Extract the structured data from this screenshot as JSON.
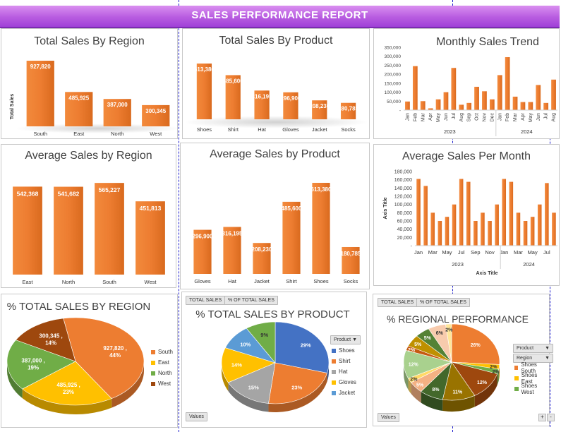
{
  "banner": {
    "title": "SALES PERFORMANCE REPORT"
  },
  "colors": {
    "orange": "#ed7d31",
    "blue": "#4472c4",
    "gray": "#a5a5a5",
    "gold": "#ffc000",
    "lightblue": "#5b9bd5",
    "green": "#70ad47",
    "brown": "#9e480e",
    "banner": "#b85ce0"
  },
  "chart_data": [
    {
      "id": "sales-by-region",
      "type": "bar",
      "title": "Total Sales By Region",
      "ylabel": "Total Sales",
      "xlabel": "",
      "categories": [
        "South",
        "East",
        "North",
        "West"
      ],
      "values": [
        927820,
        485925,
        387000,
        300345
      ],
      "data_labels": [
        "927,820",
        "485,925",
        "387,000",
        "300,345"
      ]
    },
    {
      "id": "sales-by-product",
      "type": "bar",
      "title": "Total Sales By Product",
      "xlabel": "",
      "ylabel": "",
      "categories": [
        "Shoes",
        "Shirt",
        "Hat",
        "Gloves",
        "Jacket",
        "Socks"
      ],
      "values": [
        613380,
        485600,
        316195,
        296900,
        208230,
        180785
      ],
      "data_labels": [
        "613,380",
        "485,600",
        "316,195",
        "296,900",
        "208,230",
        "180,785"
      ]
    },
    {
      "id": "monthly-trend",
      "type": "bar",
      "title": "Monthly Sales Trend",
      "xlabel": "",
      "ylabel": "",
      "categories": [
        "Jan",
        "Feb",
        "Mar",
        "Apr",
        "May",
        "Jun",
        "Jul",
        "Aug",
        "Sep",
        "Oct",
        "Nov",
        "Dec",
        "Jan",
        "Feb",
        "Mar",
        "Apr",
        "May",
        "Jun",
        "Jul",
        "Aug"
      ],
      "year_groups": [
        "2023",
        "2024"
      ],
      "values": [
        48000,
        245000,
        50000,
        10000,
        60000,
        100000,
        235000,
        30000,
        40000,
        130000,
        105000,
        60000,
        195000,
        295000,
        75000,
        45000,
        45000,
        140000,
        40000,
        170000
      ],
      "ylim": [
        0,
        350000
      ],
      "yticks": [
        "-",
        "50,000",
        "100,000",
        "150,000",
        "200,000",
        "250,000",
        "300,000",
        "350,000"
      ]
    },
    {
      "id": "avg-by-region",
      "type": "bar",
      "title": "Average Sales by Region",
      "xlabel": "",
      "ylabel": "",
      "categories": [
        "East",
        "North",
        "South",
        "West"
      ],
      "values": [
        542368,
        541682,
        565227,
        451813
      ],
      "data_labels": [
        "542,368",
        "541,682",
        "565,227",
        "451,813"
      ]
    },
    {
      "id": "avg-by-product",
      "type": "bar",
      "title": "Average Sales by Product",
      "xlabel": "",
      "ylabel": "",
      "categories": [
        "Gloves",
        "Hat",
        "Jacket",
        "Shirt",
        "Shoes",
        "Socks"
      ],
      "values": [
        296900,
        316195,
        208230,
        485600,
        613380,
        180785
      ],
      "data_labels": [
        "296,900",
        "316,195",
        "208,230",
        "485,600",
        "613,380",
        "180,785"
      ]
    },
    {
      "id": "avg-per-month",
      "type": "bar",
      "title": "Average Sales Per Month",
      "xlabel": "Axis Title",
      "ylabel": "Axis Title",
      "categories": [
        "Jan",
        "",
        "Mar",
        "",
        "May",
        "",
        "Jul",
        "",
        "Sep",
        "",
        "Nov",
        "",
        "Jan",
        "",
        "Mar",
        "",
        "May",
        "",
        "Jul",
        ""
      ],
      "year_groups": [
        "2023",
        "2024"
      ],
      "values": [
        162000,
        145000,
        80000,
        60000,
        70000,
        100000,
        162000,
        155000,
        60000,
        80000,
        60000,
        100000,
        162000,
        155000,
        80000,
        60000,
        70000,
        100000,
        152000,
        80000
      ],
      "ylim": [
        0,
        180000
      ],
      "yticks": [
        "-",
        "20,000",
        "40,000",
        "60,000",
        "80,000",
        "100,000",
        "120,000",
        "140,000",
        "160,000",
        "180,000"
      ]
    },
    {
      "id": "pct-by-region",
      "type": "pie",
      "title": "% TOTAL SALES BY REGION",
      "slices": [
        {
          "name": "South",
          "value": 44,
          "label": "927,820 , 44%",
          "color": "#ed7d31"
        },
        {
          "name": "East",
          "value": 23,
          "label": "485,925 , 23%",
          "color": "#ffc000"
        },
        {
          "name": "North",
          "value": 19,
          "label": "387,000 , 19%",
          "color": "#70ad47"
        },
        {
          "name": "West",
          "value": 14,
          "label": "300,345 , 14%",
          "color": "#9e480e"
        }
      ],
      "legend_position": "right"
    },
    {
      "id": "pct-by-product",
      "type": "pie",
      "title": "% TOTAL SALES BY PRODUCT",
      "slices": [
        {
          "name": "Shoes",
          "value": 29,
          "label": "29%",
          "color": "#4472c4"
        },
        {
          "name": "Shirt",
          "value": 23,
          "label": "23%",
          "color": "#ed7d31"
        },
        {
          "name": "Hat",
          "value": 15,
          "label": "15%",
          "color": "#a5a5a5"
        },
        {
          "name": "Gloves",
          "value": 14,
          "label": "14%",
          "color": "#ffc000"
        },
        {
          "name": "Jacket",
          "value": 10,
          "label": "10%",
          "color": "#5b9bd5"
        },
        {
          "name": "Socks",
          "value": 9,
          "label": "9%",
          "color": "#70ad47"
        }
      ],
      "legend_position": "right"
    },
    {
      "id": "regional-performance",
      "type": "pie",
      "title": "% REGIONAL PERFORMANCE",
      "slices": [
        {
          "name": "Shoes South",
          "value": 26,
          "label": "26%",
          "color": "#ed7d31"
        },
        {
          "name": "",
          "value": 2,
          "label": "2%",
          "color": "#ffc000"
        },
        {
          "name": "",
          "value": 2,
          "label": "2%",
          "color": "#70ad47"
        },
        {
          "name": "",
          "value": 12,
          "label": "12%",
          "color": "#9e480e"
        },
        {
          "name": "",
          "value": 11,
          "label": "11%",
          "color": "#997300"
        },
        {
          "name": "",
          "value": 8,
          "label": "8%",
          "color": "#43682b"
        },
        {
          "name": "",
          "value": 5,
          "label": "5%",
          "color": "#f4b183"
        },
        {
          "name": "",
          "value": 2,
          "label": "2%",
          "color": "#ffd966"
        },
        {
          "name": "",
          "value": 12,
          "label": "12%",
          "color": "#a9d18e"
        },
        {
          "name": "",
          "value": 2,
          "label": "2%",
          "color": "#c55a11"
        },
        {
          "name": "",
          "value": 5,
          "label": "5%",
          "color": "#bf9000"
        },
        {
          "name": "",
          "value": 5,
          "label": "5%",
          "color": "#548235"
        },
        {
          "name": "",
          "value": 6,
          "label": "6%",
          "color": "#f8cbad"
        },
        {
          "name": "",
          "value": 2,
          "label": "2%",
          "color": "#ffe699"
        }
      ],
      "legend_position": "right"
    }
  ],
  "pivot": {
    "total_sales_btn": "TOTAL SALES",
    "pct_total_btn": "% OF TOTAL SALES",
    "values_btn": "Values",
    "product_field": "Product",
    "region_field": "Region",
    "product_legend": [
      "Shoes",
      "Shirt",
      "Hat",
      "Gloves",
      "Jacket"
    ],
    "regional_legend": [
      "Shoes South",
      "Shoes East",
      "Shoes West"
    ],
    "plus": "+",
    "minus": "-"
  }
}
